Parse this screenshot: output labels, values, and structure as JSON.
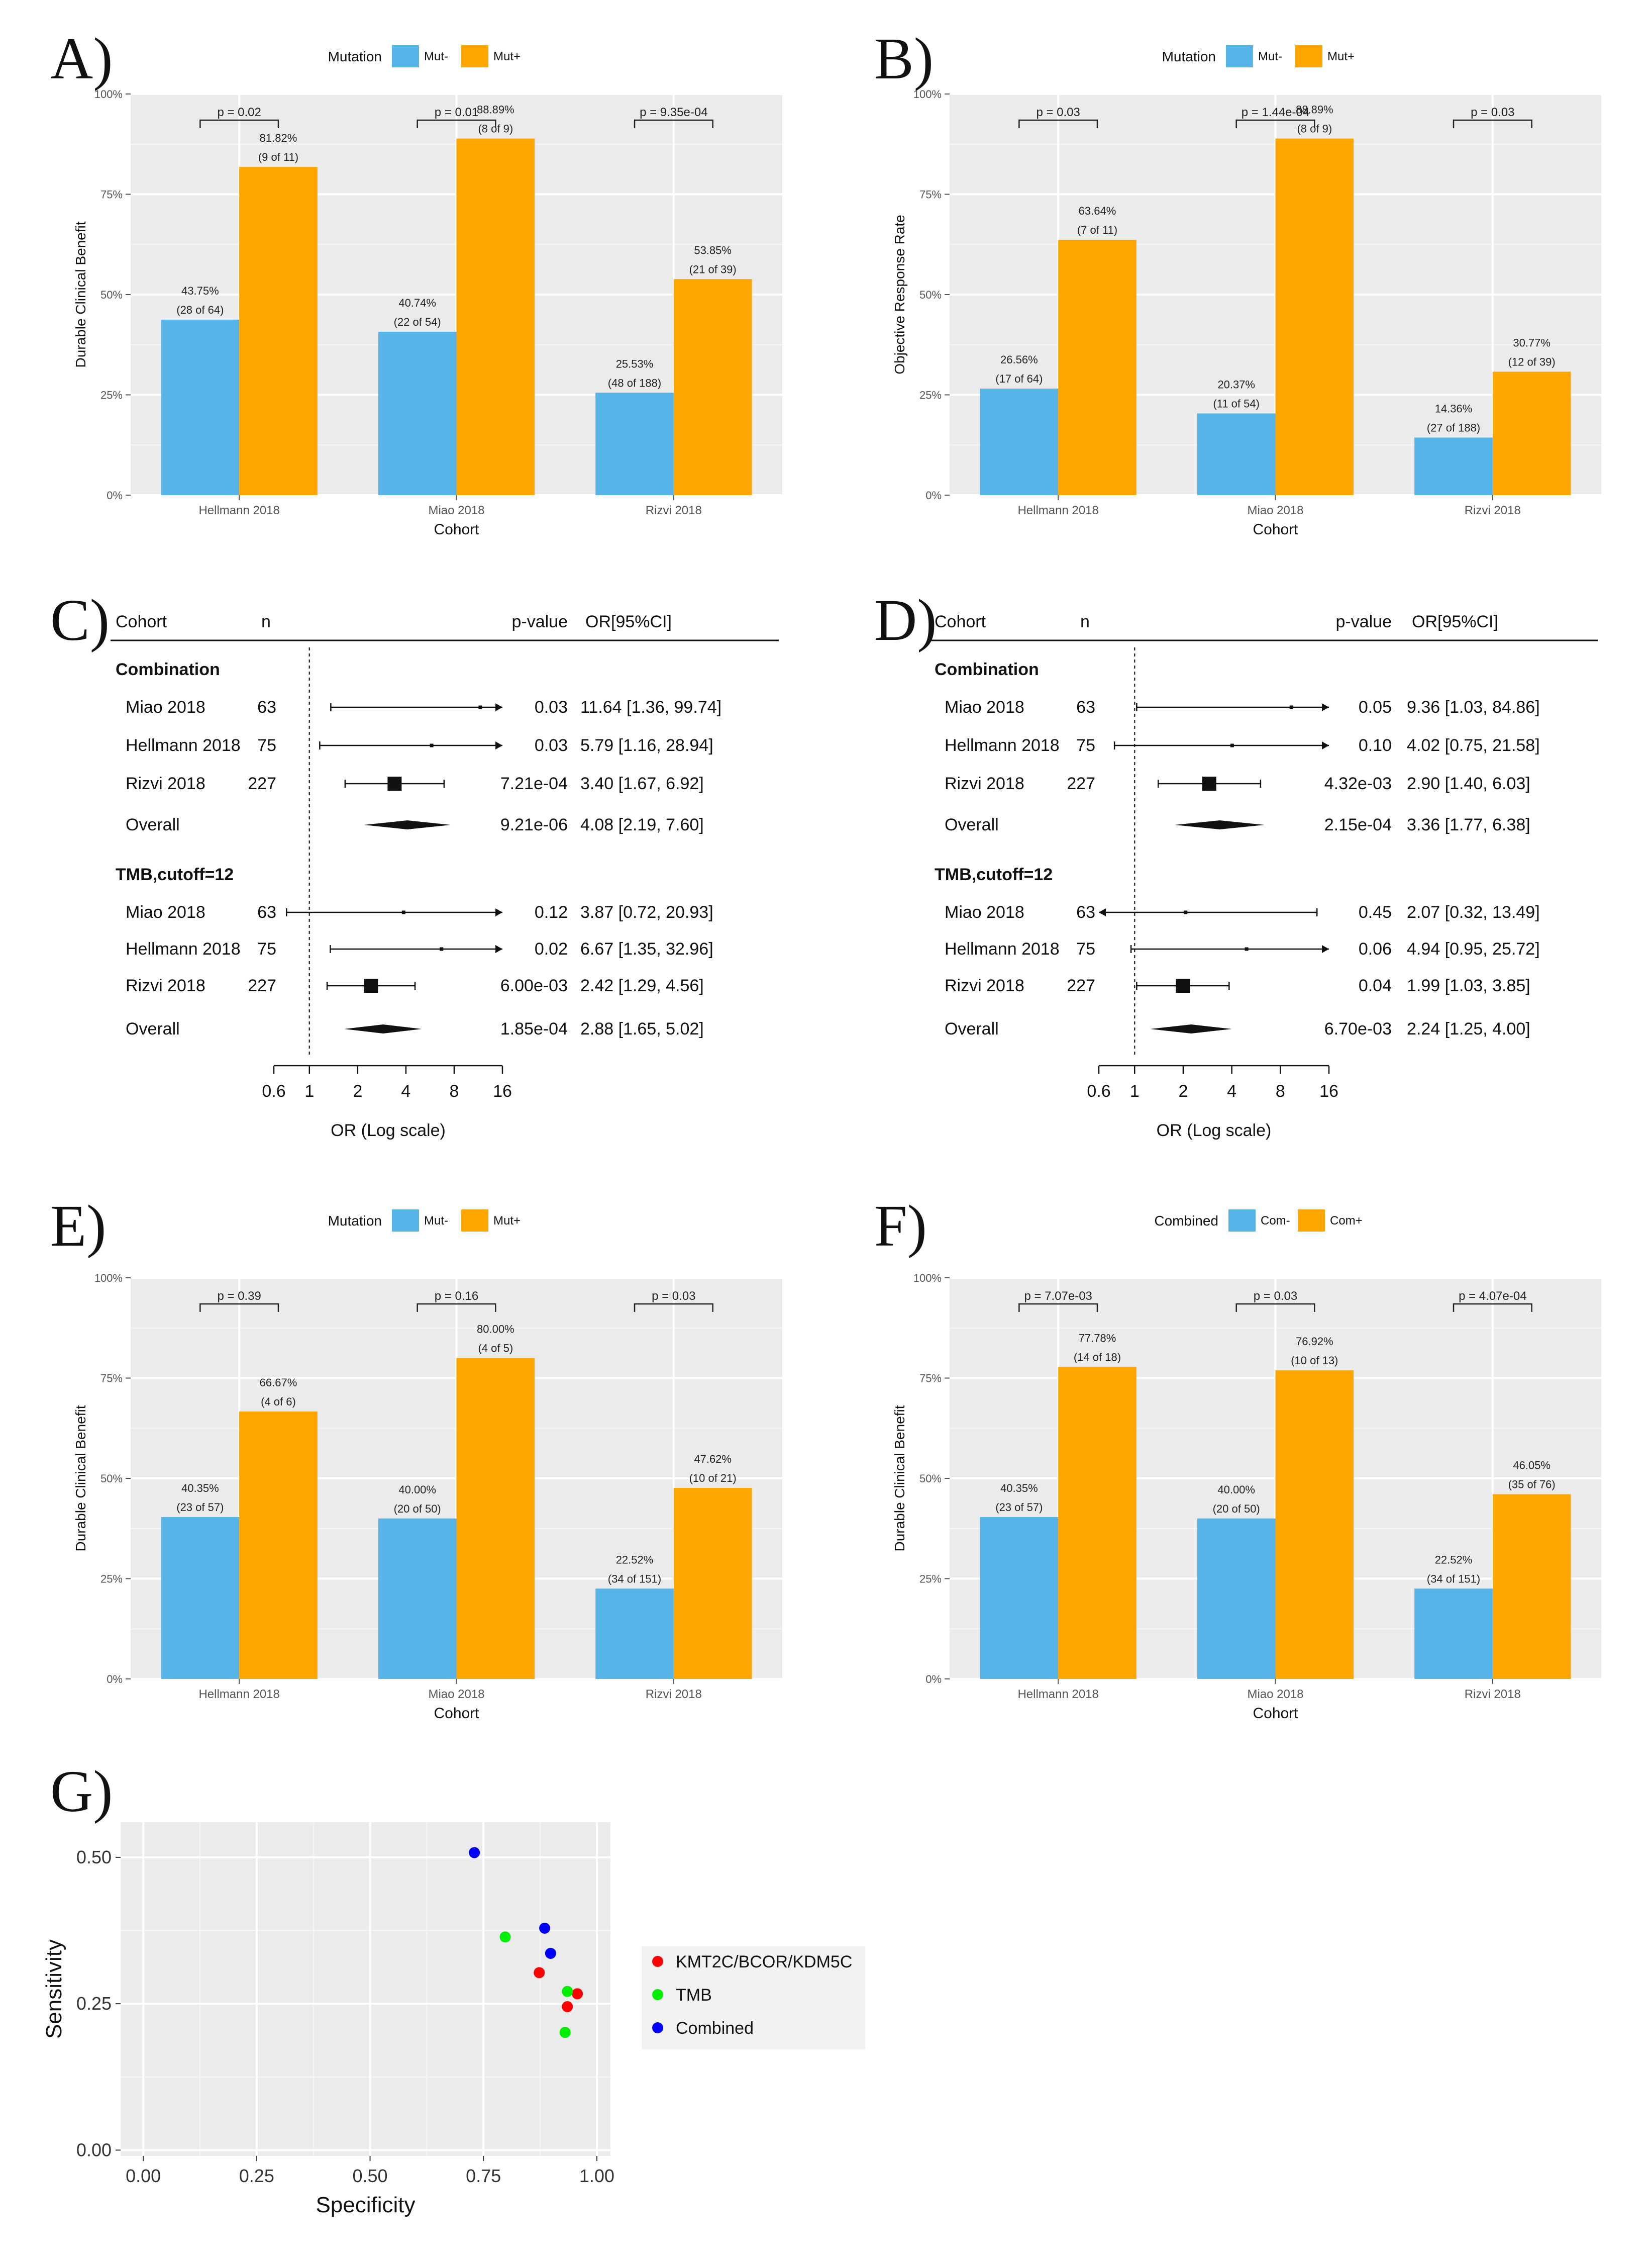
{
  "panel_labels": [
    "A)",
    "B)",
    "C)",
    "D)",
    "E)",
    "F)",
    "G)"
  ],
  "colors": {
    "neg": "#56B4E9",
    "pos": "#FFA500",
    "panel_bg": "#EBEBEB",
    "red": "#FF0000",
    "green": "#00EE00",
    "blue": "#0000FF"
  },
  "chart_data": [
    {
      "id": "A",
      "type": "bar",
      "legend_title": "Mutation",
      "legend_labels": [
        "Mut-",
        "Mut+"
      ],
      "xlabel": "Cohort",
      "ylabel": "Durable Clinical Benefit",
      "ylim": [
        0,
        100
      ],
      "yticks": [
        "0%",
        "25%",
        "50%",
        "75%",
        "100%"
      ],
      "categories": [
        "Hellmann 2018",
        "Miao  2018",
        "Rizvi 2018"
      ],
      "series": [
        {
          "name": "Mut-",
          "values": [
            43.75,
            40.74,
            25.53
          ],
          "labels": [
            "43.75%",
            "40.74%",
            "25.53%"
          ],
          "counts": [
            "(28 of 64)",
            "(22 of 54)",
            "(48 of 188)"
          ]
        },
        {
          "name": "Mut+",
          "values": [
            81.82,
            88.89,
            53.85
          ],
          "labels": [
            "81.82%",
            "88.89%",
            "53.85%"
          ],
          "counts": [
            "(9 of 11)",
            "(8 of 9)",
            "(21 of 39)"
          ]
        }
      ],
      "pvalues": [
        "p = 0.02",
        "p = 0.01",
        "p = 9.35e-04"
      ]
    },
    {
      "id": "B",
      "type": "bar",
      "legend_title": "Mutation",
      "legend_labels": [
        "Mut-",
        "Mut+"
      ],
      "xlabel": "Cohort",
      "ylabel": "Objective Response Rate",
      "ylim": [
        0,
        100
      ],
      "yticks": [
        "0%",
        "25%",
        "50%",
        "75%",
        "100%"
      ],
      "categories": [
        "Hellmann 2018",
        "Miao  2018",
        "Rizvi 2018"
      ],
      "series": [
        {
          "name": "Mut-",
          "values": [
            26.56,
            20.37,
            14.36
          ],
          "labels": [
            "26.56%",
            "20.37%",
            "14.36%"
          ],
          "counts": [
            "(17 of 64)",
            "(11 of 54)",
            "(27 of 188)"
          ]
        },
        {
          "name": "Mut+",
          "values": [
            63.64,
            88.89,
            30.77
          ],
          "labels": [
            "63.64%",
            "88.89%",
            "30.77%"
          ],
          "counts": [
            "(7 of 11)",
            "(8 of 9)",
            "(12 of 39)"
          ]
        }
      ],
      "pvalues": [
        "p = 0.03",
        "p = 1.44e-04",
        "p = 0.03"
      ]
    },
    {
      "id": "C",
      "type": "forest",
      "headers": [
        "Cohort",
        "n",
        "p-value",
        "OR[95%CI]"
      ],
      "xlabel": "OR (Log scale)",
      "xticks": [
        0.6,
        1,
        2,
        4,
        8,
        16
      ],
      "xtick_labels": [
        "0.6",
        "1",
        "2",
        "4",
        "8",
        "16"
      ],
      "groups": [
        {
          "title": "Combination",
          "rows": [
            {
              "cohort": "Miao  2018",
              "n": "63",
              "or": 11.64,
              "lo": 1.36,
              "hi": 99.74,
              "p": "0.03",
              "ci": "11.64 [1.36, 99.74]"
            },
            {
              "cohort": "Hellmann 2018",
              "n": "75",
              "or": 5.79,
              "lo": 1.16,
              "hi": 28.94,
              "p": "0.03",
              "ci": "5.79 [1.16, 28.94]"
            },
            {
              "cohort": "Rizvi 2018",
              "n": "227",
              "or": 3.4,
              "lo": 1.67,
              "hi": 6.92,
              "p": "7.21e-04",
              "ci": "3.40 [1.67,  6.92]"
            }
          ],
          "overall": {
            "label": "Overall",
            "or": 4.08,
            "lo": 2.19,
            "hi": 7.6,
            "p": "9.21e-06",
            "ci": "4.08 [2.19,  7.60]"
          }
        },
        {
          "title": "TMB,cutoff=12",
          "rows": [
            {
              "cohort": "Miao  2018",
              "n": "63",
              "or": 3.87,
              "lo": 0.72,
              "hi": 20.93,
              "p": "0.12",
              "ci": "3.87 [0.72, 20.93]"
            },
            {
              "cohort": "Hellmann 2018",
              "n": "75",
              "or": 6.67,
              "lo": 1.35,
              "hi": 32.96,
              "p": "0.02",
              "ci": "6.67 [1.35, 32.96]"
            },
            {
              "cohort": "Rizvi 2018",
              "n": "227",
              "or": 2.42,
              "lo": 1.29,
              "hi": 4.56,
              "p": "6.00e-03",
              "ci": "2.42 [1.29,  4.56]"
            }
          ],
          "overall": {
            "label": "Overall",
            "or": 2.88,
            "lo": 1.65,
            "hi": 5.02,
            "p": "1.85e-04",
            "ci": "2.88 [1.65,  5.02]"
          }
        }
      ]
    },
    {
      "id": "D",
      "type": "forest",
      "headers": [
        "Cohort",
        "n",
        "p-value",
        "OR[95%CI]"
      ],
      "xlabel": "OR (Log scale)",
      "xticks": [
        0.6,
        1,
        2,
        4,
        8,
        16
      ],
      "xtick_labels": [
        "0.6",
        "1",
        "2",
        "4",
        "8",
        "16"
      ],
      "groups": [
        {
          "title": "Combination",
          "rows": [
            {
              "cohort": "Miao  2018",
              "n": "63",
              "or": 9.36,
              "lo": 1.03,
              "hi": 84.86,
              "p": "0.05",
              "ci": "9.36 [1.03, 84.86]"
            },
            {
              "cohort": "Hellmann 2018",
              "n": "75",
              "or": 4.02,
              "lo": 0.75,
              "hi": 21.58,
              "p": "0.10",
              "ci": "4.02 [0.75, 21.58]"
            },
            {
              "cohort": "Rizvi 2018",
              "n": "227",
              "or": 2.9,
              "lo": 1.4,
              "hi": 6.03,
              "p": "4.32e-03",
              "ci": "2.90 [1.40,  6.03]"
            }
          ],
          "overall": {
            "label": "Overall",
            "or": 3.36,
            "lo": 1.77,
            "hi": 6.38,
            "p": "2.15e-04",
            "ci": "3.36 [1.77,  6.38]"
          }
        },
        {
          "title": "TMB,cutoff=12",
          "rows": [
            {
              "cohort": "Miao  2018",
              "n": "63",
              "or": 2.07,
              "lo": 0.32,
              "hi": 13.49,
              "p": "0.45",
              "ci": "2.07 [0.32, 13.49]"
            },
            {
              "cohort": "Hellmann 2018",
              "n": "75",
              "or": 4.94,
              "lo": 0.95,
              "hi": 25.72,
              "p": "0.06",
              "ci": "4.94 [0.95, 25.72]"
            },
            {
              "cohort": "Rizvi 2018",
              "n": "227",
              "or": 1.99,
              "lo": 1.03,
              "hi": 3.85,
              "p": "0.04",
              "ci": "1.99 [1.03,  3.85]"
            }
          ],
          "overall": {
            "label": "Overall",
            "or": 2.24,
            "lo": 1.25,
            "hi": 4.0,
            "p": "6.70e-03",
            "ci": "2.24 [1.25,  4.00]"
          }
        }
      ]
    },
    {
      "id": "E",
      "type": "bar",
      "legend_title": "Mutation",
      "legend_labels": [
        "Mut-",
        "Mut+"
      ],
      "xlabel": "Cohort",
      "ylabel": "Durable Clinical Benefit",
      "ylim": [
        0,
        100
      ],
      "yticks": [
        "0%",
        "25%",
        "50%",
        "75%",
        "100%"
      ],
      "categories": [
        "Hellmann 2018",
        "Miao  2018",
        "Rizvi 2018"
      ],
      "series": [
        {
          "name": "Mut-",
          "values": [
            40.35,
            40.0,
            22.52
          ],
          "labels": [
            "40.35%",
            "40.00%",
            "22.52%"
          ],
          "counts": [
            "(23 of 57)",
            "(20 of 50)",
            "(34 of 151)"
          ]
        },
        {
          "name": "Mut+",
          "values": [
            66.67,
            80.0,
            47.62
          ],
          "labels": [
            "66.67%",
            "80.00%",
            "47.62%"
          ],
          "counts": [
            "(4 of 6)",
            "(4 of 5)",
            "(10 of 21)"
          ]
        }
      ],
      "pvalues": [
        "p = 0.39",
        "p = 0.16",
        "p = 0.03"
      ]
    },
    {
      "id": "F",
      "type": "bar",
      "legend_title": "Combined",
      "legend_labels": [
        "Com-",
        "Com+"
      ],
      "xlabel": "Cohort",
      "ylabel": "Durable Clinical Benefit",
      "ylim": [
        0,
        100
      ],
      "yticks": [
        "0%",
        "25%",
        "50%",
        "75%",
        "100%"
      ],
      "categories": [
        "Hellmann 2018",
        "Miao  2018",
        "Rizvi 2018"
      ],
      "series": [
        {
          "name": "Com-",
          "values": [
            40.35,
            40.0,
            22.52
          ],
          "labels": [
            "40.35%",
            "40.00%",
            "22.52%"
          ],
          "counts": [
            "(23 of 57)",
            "(20 of 50)",
            "(34 of 151)"
          ]
        },
        {
          "name": "Com+",
          "values": [
            77.78,
            76.92,
            46.05
          ],
          "labels": [
            "77.78%",
            "76.92%",
            "46.05%"
          ],
          "counts": [
            "(14 of 18)",
            "(10 of 13)",
            "(35 of 76)"
          ]
        }
      ],
      "pvalues": [
        "p = 7.07e-03",
        "p = 0.03",
        "p = 4.07e-04"
      ]
    },
    {
      "id": "G",
      "type": "scatter",
      "xlabel": "Specificity",
      "ylabel": "Sensitivity",
      "xlim": [
        -0.05,
        1.03
      ],
      "ylim": [
        -0.01,
        0.56
      ],
      "xticks": [
        "0.00",
        "0.25",
        "0.50",
        "0.75",
        "1.00"
      ],
      "yticks": [
        "0.00",
        "0.25",
        "0.50"
      ],
      "series": [
        {
          "name": "KMT2C/BCOR/KDM5C",
          "color": "#FF0000",
          "points": [
            [
              0.873,
              0.303
            ],
            [
              0.957,
              0.267
            ],
            [
              0.935,
              0.245
            ]
          ]
        },
        {
          "name": "TMB",
          "color": "#00EE00",
          "points": [
            [
              0.798,
              0.364
            ],
            [
              0.935,
              0.271
            ],
            [
              0.93,
              0.201
            ]
          ]
        },
        {
          "name": "Combined",
          "color": "#0000FF",
          "points": [
            [
              0.73,
              0.508
            ],
            [
              0.885,
              0.379
            ],
            [
              0.898,
              0.336
            ]
          ]
        }
      ]
    }
  ]
}
